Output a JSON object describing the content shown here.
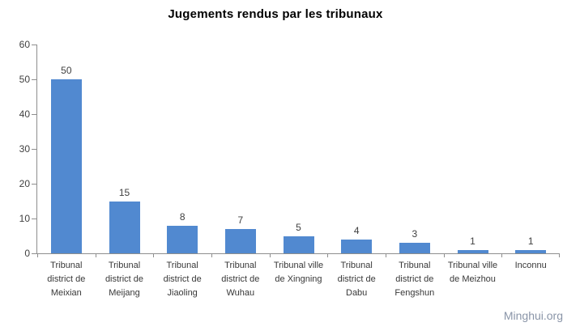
{
  "watermark": "Minghui.org",
  "colors": {
    "bar": "#5189d0",
    "axis": "#8e8e8e",
    "tick_text": "#404040",
    "category_text": "#383838",
    "title_text": "#000000",
    "watermark_text": "#8a95a8"
  },
  "chart_data": {
    "type": "bar",
    "title": "Jugements rendus par les tribunaux",
    "categories": [
      "Tribunal district de Meixian",
      "Tribunal district de Meijang",
      "Tribunal district de Jiaoling",
      "Tribunal district de Wuhau",
      "Tribunal ville de Xingning",
      "Tribunal district de Dabu",
      "Tribunal district de Fengshun",
      "Tribunal ville de Meizhou",
      "Inconnu"
    ],
    "category_lines": [
      [
        "Tribunal",
        "district de",
        "Meixian"
      ],
      [
        "Tribunal",
        "district de",
        "Meijang"
      ],
      [
        "Tribunal",
        "district de",
        "Jiaoling"
      ],
      [
        "Tribunal",
        "district de",
        "Wuhau"
      ],
      [
        "Tribunal ville",
        "de Xingning"
      ],
      [
        "Tribunal",
        "district de",
        "Dabu"
      ],
      [
        "Tribunal",
        "district de",
        "Fengshun"
      ],
      [
        "Tribunal ville",
        "de Meizhou"
      ],
      [
        "Inconnu"
      ]
    ],
    "values": [
      50,
      15,
      8,
      7,
      5,
      4,
      3,
      1,
      1
    ],
    "xlabel": "",
    "ylabel": "",
    "ylim": [
      0,
      60
    ],
    "yticks": [
      0,
      10,
      20,
      30,
      40,
      50,
      60
    ],
    "grid": false,
    "legend": false,
    "data_labels": true,
    "bar_color": "#5189d0"
  }
}
